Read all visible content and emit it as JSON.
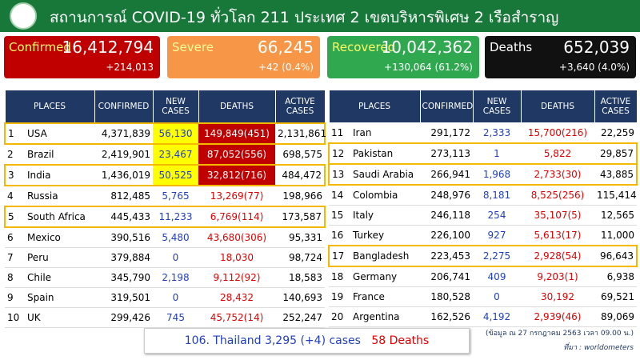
{
  "header": {
    "title": "สถานการณ์ COVID-19 ทั่วโลก 211 ประเทศ 2 เขตบริหารพิเศษ 2 เรือสำราญ"
  },
  "cards": [
    {
      "label": "Confirmed",
      "value": "16,412,794",
      "change": "+214,013"
    },
    {
      "label": "Severe",
      "value": "66,245",
      "change": "+42 (0.4%)"
    },
    {
      "label": "Recovered",
      "value": "10,042,362",
      "change": "+130,064 (61.2%)"
    },
    {
      "label": "Deaths",
      "value": "652,039",
      "change": "+3,640 (4.0%)"
    }
  ],
  "tables": [
    {
      "columns": [
        "PLACES",
        "CONFIRMED",
        "NEW CASES",
        "DEATHS",
        "ACTIVE CASES"
      ],
      "rows": [
        [
          "1",
          "USA",
          "4,371,839",
          "56,130",
          "149,849(451)",
          "2,131,861"
        ],
        [
          "2",
          "Brazil",
          "2,419,901",
          "23,467",
          "87,052(556)",
          "698,575"
        ],
        [
          "3",
          "India",
          "1,436,019",
          "50,525",
          "32,812(716)",
          "484,472"
        ],
        [
          "4",
          "Russia",
          "812,485",
          "5,765",
          "13,269(77)",
          "198,966"
        ],
        [
          "5",
          "South Africa",
          "445,433",
          "11,233",
          "6,769(114)",
          "173,587"
        ],
        [
          "6",
          "Mexico",
          "390,516",
          "5,480",
          "43,680(306)",
          "95,331"
        ],
        [
          "7",
          "Peru",
          "379,884",
          "0",
          "18,030",
          "98,724"
        ],
        [
          "8",
          "Chile",
          "345,790",
          "2,198",
          "9,112(92)",
          "18,583"
        ],
        [
          "9",
          "Spain",
          "319,501",
          "0",
          "28,432",
          "140,693"
        ],
        [
          "10",
          "UK",
          "299,426",
          "745",
          "45,752(14)",
          "252,247"
        ]
      ]
    },
    {
      "columns": [
        "PLACES",
        "CONFIRMED",
        "NEW CASES",
        "DEATHS",
        "ACTIVE CASES"
      ],
      "rows": [
        [
          "11",
          "Iran",
          "291,172",
          "2,333",
          "15,700(216)",
          "22,259"
        ],
        [
          "12",
          "Pakistan",
          "273,113",
          "1",
          "5,822",
          "29,857"
        ],
        [
          "13",
          "Saudi Arabia",
          "266,941",
          "1,968",
          "2,733(30)",
          "43,885"
        ],
        [
          "14",
          "Colombia",
          "248,976",
          "8,181",
          "8,525(256)",
          "115,414"
        ],
        [
          "15",
          "Italy",
          "246,118",
          "254",
          "35,107(5)",
          "12,565"
        ],
        [
          "16",
          "Turkey",
          "226,100",
          "927",
          "5,613(17)",
          "11,000"
        ],
        [
          "17",
          "Bangladesh",
          "223,453",
          "2,275",
          "2,928(54)",
          "96,643"
        ],
        [
          "18",
          "Germany",
          "206,741",
          "409",
          "9,203(1)",
          "6,938"
        ],
        [
          "19",
          "France",
          "180,528",
          "0",
          "30,192",
          "69,521"
        ],
        [
          "20",
          "Argentina",
          "162,526",
          "4,192",
          "2,939(46)",
          "89,069"
        ]
      ]
    }
  ],
  "footer": {
    "thailand": "106. Thailand 3,295 (+4)  cases",
    "deaths": "58  Deaths",
    "note": "(ข้อมูล ณ 27 กรกฎาคม 2563 เวลา 09.00 น.)",
    "source": "ที่มา : worldometers"
  }
}
